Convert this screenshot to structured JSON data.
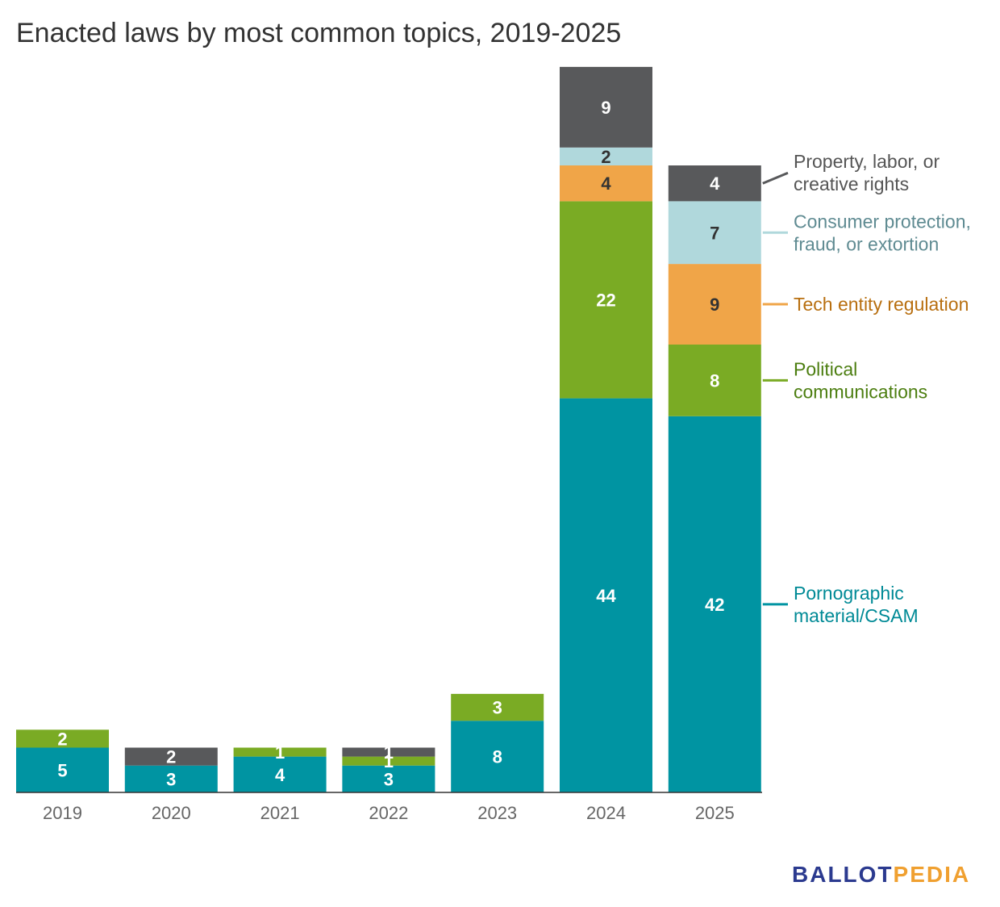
{
  "title": "Enacted laws by most common topics, 2019-2025",
  "brand": {
    "part1": "BALLOT",
    "part2": "PEDIA",
    "color1": "#2b3a8f",
    "color2": "#f0a030"
  },
  "chart_data": {
    "type": "bar",
    "stacked": true,
    "title": "Enacted laws by most common topics, 2019-2025",
    "categories": [
      "2019",
      "2020",
      "2021",
      "2022",
      "2023",
      "2024",
      "2025"
    ],
    "ylim": [
      0,
      81
    ],
    "grid": false,
    "legend_placement": "right",
    "series": [
      {
        "name": "Pornographic material/CSAM",
        "legend_lines": [
          "Pornographic",
          "material/CSAM"
        ],
        "color": "#0094a2",
        "text_color": "#008a96",
        "label_color": "#ffffff",
        "values": [
          5,
          3,
          4,
          3,
          8,
          44,
          42
        ]
      },
      {
        "name": "Political communications",
        "legend_lines": [
          "Political",
          "communications"
        ],
        "color": "#7aab24",
        "text_color": "#4c7e10",
        "label_color": "#ffffff",
        "values": [
          2,
          0,
          1,
          1,
          3,
          22,
          8
        ]
      },
      {
        "name": "Tech entity regulation",
        "legend_lines": [
          "Tech entity regulation"
        ],
        "color": "#f0a548",
        "text_color": "#b86f10",
        "label_color": "#333333",
        "values": [
          0,
          0,
          0,
          0,
          0,
          4,
          9
        ]
      },
      {
        "name": "Consumer protection, fraud, or extortion",
        "legend_lines": [
          "Consumer protection,",
          "fraud, or extortion"
        ],
        "color": "#b0d8dc",
        "text_color": "#5f8b92",
        "label_color": "#333333",
        "values": [
          0,
          0,
          0,
          0,
          0,
          2,
          7
        ]
      },
      {
        "name": "Property, labor, or creative rights",
        "legend_lines": [
          "Property, labor, or",
          "creative rights"
        ],
        "color": "#58595b",
        "text_color": "#555555",
        "label_color": "#ffffff",
        "values": [
          0,
          2,
          0,
          1,
          0,
          9,
          4
        ]
      }
    ]
  }
}
